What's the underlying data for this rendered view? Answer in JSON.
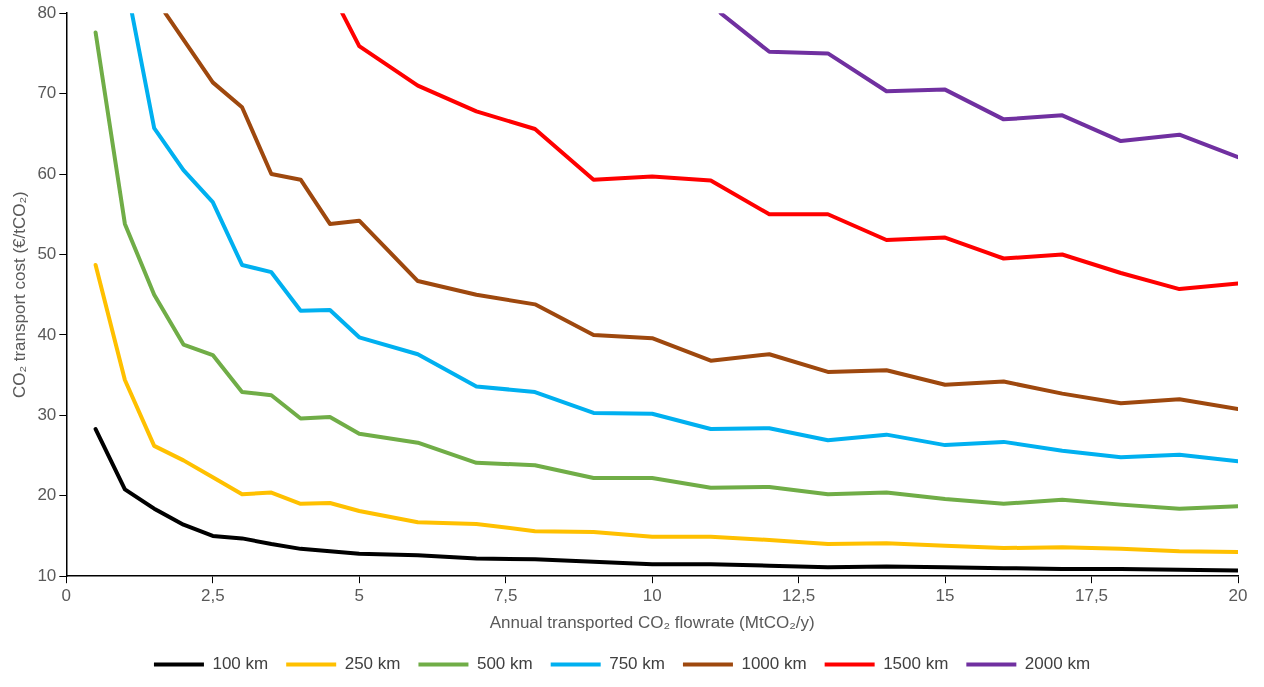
{
  "chart_data": {
    "type": "line",
    "xlabel": "Annual transported CO₂ flowrate (MtCO₂/y)",
    "ylabel": "CO₂ transport cost (€/tCO₂)",
    "x": [
      0.5,
      1,
      1.5,
      2,
      2.5,
      3,
      3.5,
      4,
      4.5,
      5,
      6,
      7,
      8,
      9,
      10,
      11,
      12,
      13,
      14,
      15,
      16,
      17,
      18,
      19,
      20
    ],
    "series": [
      {
        "name": "100 km",
        "color": "#000000",
        "values": [
          28.3,
          20.8,
          18.4,
          16.4,
          15.0,
          14.7,
          14.0,
          13.4,
          13.1,
          12.8,
          12.6,
          12.2,
          12.1,
          11.8,
          11.5,
          11.5,
          11.3,
          11.1,
          11.2,
          11.1,
          11.0,
          10.9,
          10.9,
          10.8,
          10.7
        ]
      },
      {
        "name": "250 km",
        "color": "#ffc000",
        "values": [
          48.7,
          34.4,
          26.2,
          24.4,
          22.3,
          20.2,
          20.4,
          19.0,
          19.1,
          18.1,
          16.7,
          16.5,
          15.6,
          15.5,
          14.9,
          14.9,
          14.5,
          14.0,
          14.1,
          13.8,
          13.5,
          13.6,
          13.4,
          13.1,
          13.0
        ]
      },
      {
        "name": "500 km",
        "color": "#70ad47",
        "values": [
          77.6,
          53.8,
          45.0,
          38.8,
          37.5,
          32.9,
          32.5,
          29.6,
          29.8,
          27.7,
          26.6,
          24.1,
          23.8,
          22.2,
          22.2,
          21.0,
          21.1,
          20.2,
          20.4,
          19.6,
          19.0,
          19.5,
          18.9,
          18.4,
          18.7
        ]
      },
      {
        "name": "750 km",
        "color": "#00b0f0",
        "x": [
          1.12,
          1.5,
          2,
          2.5,
          3,
          3.5,
          4,
          4.5,
          5,
          6,
          7,
          8,
          9,
          10,
          11,
          12,
          13,
          14,
          15,
          16,
          17,
          18,
          19,
          20
        ],
        "values": [
          80,
          65.7,
          60.5,
          56.5,
          48.7,
          47.8,
          43.0,
          43.1,
          39.7,
          37.6,
          33.6,
          32.9,
          30.3,
          30.2,
          28.3,
          28.4,
          26.9,
          27.6,
          26.3,
          26.7,
          25.6,
          24.8,
          25.1,
          24.3
        ]
      },
      {
        "name": "1000 km",
        "color": "#9e480e",
        "x": [
          1.69,
          2,
          2.5,
          3,
          3.5,
          4,
          4.5,
          5,
          6,
          7,
          8,
          9,
          10,
          11,
          12,
          13,
          14,
          15,
          16,
          17,
          18,
          19,
          20
        ],
        "values": [
          80,
          76.7,
          71.4,
          68.3,
          60.0,
          59.3,
          53.8,
          54.2,
          46.7,
          45.0,
          43.8,
          40.0,
          39.6,
          36.8,
          37.6,
          35.4,
          35.6,
          33.8,
          34.2,
          32.7,
          31.5,
          32.0,
          30.8
        ]
      },
      {
        "name": "1500 km",
        "color": "#ff0000",
        "x": [
          4.71,
          5,
          6,
          7,
          8,
          9,
          10,
          11,
          12,
          13,
          14,
          15,
          16,
          17,
          18,
          19,
          20
        ],
        "values": [
          80,
          75.9,
          71.0,
          67.8,
          65.6,
          59.3,
          59.7,
          59.2,
          55.0,
          55.0,
          51.8,
          52.1,
          49.5,
          50.0,
          47.7,
          45.7,
          46.4
        ]
      },
      {
        "name": "2000 km",
        "color": "#7030a0",
        "x": [
          11.17,
          12,
          13,
          14,
          15,
          16,
          17,
          18,
          19,
          20
        ],
        "values": [
          80,
          75.2,
          75.0,
          70.3,
          70.5,
          66.8,
          67.3,
          64.1,
          64.9,
          62.1
        ]
      }
    ],
    "xlim": [
      0,
      20
    ],
    "xticks": [
      0,
      {
        "value": 2.5,
        "label": "2,5"
      },
      5,
      {
        "value": 7.5,
        "label": "7,5"
      },
      10,
      {
        "value": 12.5,
        "label": "12,5"
      },
      15,
      {
        "value": 17.5,
        "label": "17,5"
      },
      20
    ],
    "ylim": [
      10,
      80
    ],
    "yticks": [
      10,
      20,
      30,
      40,
      50,
      60,
      70,
      80
    ],
    "grid": false,
    "legend": "bottom",
    "marker": "none",
    "line_style": "solid"
  }
}
